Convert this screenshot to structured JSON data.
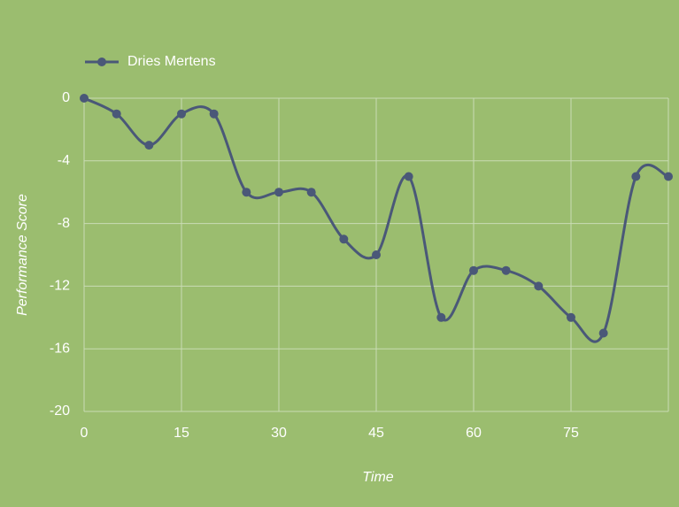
{
  "chart_data": {
    "type": "line",
    "xlabel": "Time",
    "ylabel": "Performance Score",
    "x": [
      0,
      5,
      10,
      15,
      20,
      25,
      30,
      35,
      40,
      45,
      50,
      55,
      60,
      65,
      70,
      75,
      80,
      85,
      90
    ],
    "series": [
      {
        "name": "Dries Mertens",
        "color": "#4a5878",
        "values": [
          0,
          -1,
          -3,
          -1,
          -1,
          -6,
          -6,
          -6,
          -9,
          -10,
          -5,
          -14,
          -11,
          -11,
          -12,
          -14,
          -15,
          -5,
          -5
        ]
      }
    ],
    "xlim": [
      0,
      90
    ],
    "xticks": [
      0,
      15,
      30,
      45,
      60,
      75
    ],
    "ylim": [
      -20,
      0
    ],
    "yticks": [
      0,
      -4,
      -8,
      -12,
      -16,
      -20
    ],
    "grid": true,
    "legend": "top-left"
  }
}
